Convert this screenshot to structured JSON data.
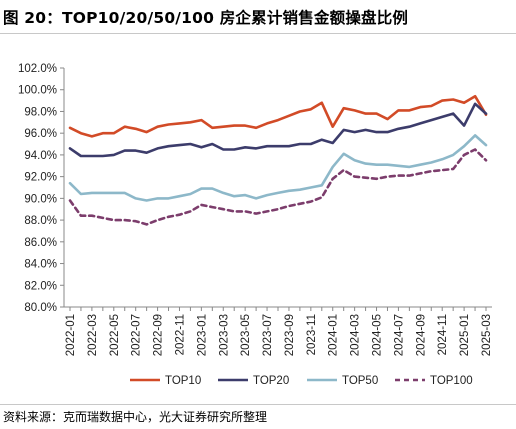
{
  "header": {
    "title": "图 20：TOP10/20/50/100 房企累计销售金额操盘比例"
  },
  "footer": {
    "source": "资料来源：克而瑞数据中心，光大证券研究所整理"
  },
  "chart_data": {
    "type": "line",
    "title": "",
    "xlabel": "",
    "ylabel": "",
    "ylim": [
      80.0,
      102.0
    ],
    "yticks": [
      80.0,
      82.0,
      84.0,
      86.0,
      88.0,
      90.0,
      92.0,
      94.0,
      96.0,
      98.0,
      100.0,
      102.0
    ],
    "ytick_labels": [
      "80.0%",
      "82.0%",
      "84.0%",
      "86.0%",
      "88.0%",
      "90.0%",
      "92.0%",
      "94.0%",
      "96.0%",
      "98.0%",
      "100.0%",
      "102.0%"
    ],
    "grid": false,
    "legend_position": "bottom",
    "x": [
      "2022-01",
      "2022-02",
      "2022-03",
      "2022-04",
      "2022-05",
      "2022-06",
      "2022-07",
      "2022-08",
      "2022-09",
      "2022-10",
      "2022-11",
      "2022-12",
      "2023-01",
      "2023-02",
      "2023-03",
      "2023-04",
      "2023-05",
      "2023-06",
      "2023-07",
      "2023-08",
      "2023-09",
      "2023-10",
      "2023-11",
      "2023-12",
      "2024-01",
      "2024-02",
      "2024-03",
      "2024-04",
      "2024-05",
      "2024-06",
      "2024-07",
      "2024-08",
      "2024-09",
      "2024-10",
      "2024-11",
      "2024-12",
      "2025-01",
      "2025-02",
      "2025-03"
    ],
    "xtick_labels": [
      "2022-01",
      "2022-03",
      "2022-05",
      "2022-07",
      "2022-09",
      "2022-11",
      "2023-01",
      "2023-03",
      "2023-05",
      "2023-07",
      "2023-09",
      "2023-11",
      "2024-01",
      "2024-03",
      "2024-05",
      "2024-07",
      "2024-09",
      "2024-11",
      "2025-01",
      "2025-03"
    ],
    "series": [
      {
        "name": "TOP10",
        "color": "#d24b27",
        "dash": "solid",
        "values": [
          96.5,
          96.0,
          95.7,
          96.0,
          96.0,
          96.6,
          96.4,
          96.1,
          96.6,
          96.8,
          96.9,
          97.0,
          97.2,
          96.5,
          96.6,
          96.7,
          96.7,
          96.5,
          96.9,
          97.2,
          97.6,
          98.0,
          98.2,
          98.8,
          96.6,
          98.3,
          98.1,
          97.8,
          97.8,
          97.3,
          98.1,
          98.1,
          98.4,
          98.5,
          99.0,
          99.1,
          98.8,
          99.4,
          97.7
        ]
      },
      {
        "name": "TOP20",
        "color": "#3c3c6b",
        "dash": "solid",
        "values": [
          94.6,
          93.9,
          93.9,
          93.9,
          94.0,
          94.4,
          94.4,
          94.2,
          94.6,
          94.8,
          94.9,
          95.0,
          94.7,
          95.0,
          94.5,
          94.5,
          94.7,
          94.6,
          94.8,
          94.8,
          94.8,
          95.0,
          95.0,
          95.4,
          95.1,
          96.3,
          96.1,
          96.3,
          96.1,
          96.1,
          96.4,
          96.6,
          96.9,
          97.2,
          97.5,
          97.8,
          96.7,
          98.7,
          97.8
        ]
      },
      {
        "name": "TOP50",
        "color": "#8db8c9",
        "dash": "solid",
        "values": [
          91.4,
          90.4,
          90.5,
          90.5,
          90.5,
          90.5,
          90.0,
          89.8,
          90.0,
          90.0,
          90.2,
          90.4,
          90.9,
          90.9,
          90.5,
          90.2,
          90.3,
          90.0,
          90.3,
          90.5,
          90.7,
          90.8,
          91.0,
          91.2,
          92.9,
          94.1,
          93.5,
          93.2,
          93.1,
          93.1,
          93.0,
          92.9,
          93.1,
          93.3,
          93.6,
          94.0,
          94.8,
          95.8,
          94.9
        ]
      },
      {
        "name": "TOP100",
        "color": "#7c3d6c",
        "dash": "dashed",
        "values": [
          89.8,
          88.4,
          88.4,
          88.2,
          88.0,
          88.0,
          87.9,
          87.6,
          88.0,
          88.3,
          88.5,
          88.8,
          89.4,
          89.2,
          89.0,
          88.8,
          88.8,
          88.6,
          88.8,
          89.0,
          89.3,
          89.5,
          89.7,
          90.1,
          91.8,
          92.6,
          92.0,
          91.9,
          91.8,
          92.0,
          92.1,
          92.1,
          92.3,
          92.5,
          92.6,
          92.7,
          94.0,
          94.5,
          93.5
        ]
      }
    ]
  }
}
